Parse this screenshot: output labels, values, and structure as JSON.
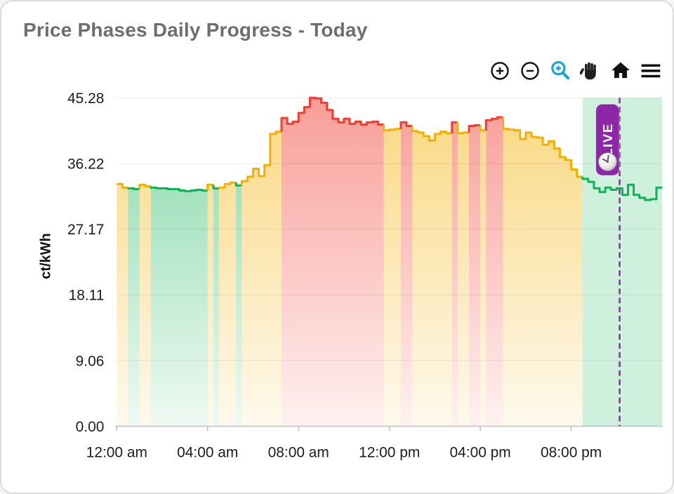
{
  "header": {
    "title": "Price Phases Daily Progress - Today"
  },
  "toolbar": {
    "tools": [
      "zoom-in",
      "zoom-out",
      "box-zoom",
      "pan",
      "reset-home",
      "menu"
    ],
    "active_tool": "box-zoom",
    "active_color": "#189fd8",
    "icon_color": "#141414"
  },
  "chart_data": {
    "type": "area",
    "subtype": "stepped-phase-area",
    "title": "Price Phases Daily Progress - Today",
    "xlabel": "",
    "ylabel": "ct/kWh",
    "y_tick_labels": [
      "45.28",
      "36.22",
      "27.17",
      "18.11",
      "9.06",
      "0.00"
    ],
    "y_tick_values": [
      45.28,
      36.22,
      27.17,
      18.11,
      9.06,
      0.0
    ],
    "x_tick_labels": [
      "12:00 am",
      "04:00 am",
      "08:00 am",
      "12:00 pm",
      "04:00 pm",
      "08:00 pm"
    ],
    "x_tick_hours": [
      0,
      4,
      8,
      12,
      16,
      20
    ],
    "ylim": [
      0,
      45.28
    ],
    "xlim_hours": [
      0,
      24
    ],
    "grid": "horizontal",
    "step_shape": "hv",
    "step_hours": 0.25,
    "live_marker_hour": 21.9,
    "forecast_region_start_hour": 20.5,
    "phase_colors": {
      "g": "#0fb356",
      "y": "#f4b000",
      "r": "#f23d31"
    },
    "forecast_region_color": "rgba(15,179,86,0.20)",
    "live_badge": {
      "label": "LIVE",
      "color": "#8d27a8",
      "text_color": "#ffffff",
      "icon": "clock-icon"
    },
    "series": {
      "name": "price",
      "times": [
        "00:00",
        "00:15",
        "00:30",
        "00:45",
        "01:00",
        "01:15",
        "01:30",
        "01:45",
        "02:00",
        "02:15",
        "02:30",
        "02:45",
        "03:00",
        "03:15",
        "03:30",
        "03:45",
        "04:00",
        "04:15",
        "04:30",
        "04:45",
        "05:00",
        "05:15",
        "05:30",
        "05:45",
        "06:00",
        "06:15",
        "06:30",
        "06:45",
        "07:00",
        "07:15",
        "07:30",
        "07:45",
        "08:00",
        "08:15",
        "08:30",
        "08:45",
        "09:00",
        "09:15",
        "09:30",
        "09:45",
        "10:00",
        "10:15",
        "10:30",
        "10:45",
        "11:00",
        "11:15",
        "11:30",
        "11:45",
        "12:00",
        "12:15",
        "12:30",
        "12:45",
        "13:00",
        "13:15",
        "13:30",
        "13:45",
        "14:00",
        "14:15",
        "14:30",
        "14:45",
        "15:00",
        "15:15",
        "15:30",
        "15:45",
        "16:00",
        "16:15",
        "16:30",
        "16:45",
        "17:00",
        "17:15",
        "17:30",
        "17:45",
        "18:00",
        "18:15",
        "18:30",
        "18:45",
        "19:00",
        "19:15",
        "19:30",
        "19:45",
        "20:00",
        "20:15",
        "20:30",
        "20:45",
        "21:00",
        "21:15",
        "21:30",
        "21:45",
        "22:00",
        "22:15",
        "22:30",
        "22:45",
        "23:00",
        "23:15",
        "23:30",
        "23:45"
      ],
      "values": [
        33.4,
        32.9,
        32.8,
        32.7,
        33.3,
        33.1,
        32.9,
        32.8,
        32.8,
        32.7,
        32.7,
        32.5,
        32.4,
        32.5,
        32.6,
        32.5,
        33.3,
        32.8,
        32.9,
        33.4,
        33.6,
        33.2,
        33.8,
        34.4,
        35.5,
        34.5,
        36.0,
        40.3,
        40.6,
        42.5,
        41.7,
        42.0,
        43.2,
        44.0,
        45.28,
        45.2,
        44.6,
        43.6,
        42.4,
        41.9,
        42.4,
        41.7,
        42.0,
        41.6,
        41.9,
        42.0,
        41.6,
        40.8,
        40.9,
        41.0,
        41.9,
        41.4,
        40.7,
        40.5,
        40.0,
        39.4,
        40.3,
        40.6,
        40.4,
        41.9,
        40.4,
        40.5,
        41.4,
        41.5,
        40.8,
        42.2,
        42.4,
        42.6,
        41.0,
        40.9,
        40.8,
        39.6,
        40.5,
        39.9,
        39.8,
        38.8,
        39.3,
        38.3,
        37.1,
        36.7,
        35.4,
        34.4,
        34.1,
        33.7,
        32.8,
        32.3,
        32.9,
        32.6,
        32.8,
        31.9,
        33.3,
        31.9,
        31.5,
        31.2,
        31.3,
        32.9
      ],
      "phases": [
        "y",
        "y",
        "g",
        "g",
        "y",
        "y",
        "g",
        "g",
        "g",
        "g",
        "g",
        "g",
        "g",
        "g",
        "g",
        "g",
        "y",
        "g",
        "y",
        "y",
        "y",
        "g",
        "y",
        "y",
        "y",
        "y",
        "y",
        "y",
        "y",
        "r",
        "r",
        "r",
        "r",
        "r",
        "r",
        "r",
        "r",
        "r",
        "r",
        "r",
        "r",
        "r",
        "r",
        "r",
        "r",
        "r",
        "r",
        "y",
        "y",
        "y",
        "r",
        "r",
        "y",
        "y",
        "y",
        "y",
        "y",
        "y",
        "y",
        "r",
        "y",
        "y",
        "r",
        "r",
        "y",
        "r",
        "r",
        "r",
        "y",
        "y",
        "y",
        "y",
        "y",
        "y",
        "y",
        "y",
        "y",
        "y",
        "y",
        "y",
        "y",
        "y",
        "g",
        "g",
        "g",
        "g",
        "g",
        "g",
        "g",
        "g",
        "g",
        "g",
        "g",
        "g",
        "g",
        "g"
      ]
    },
    "legend": null
  }
}
